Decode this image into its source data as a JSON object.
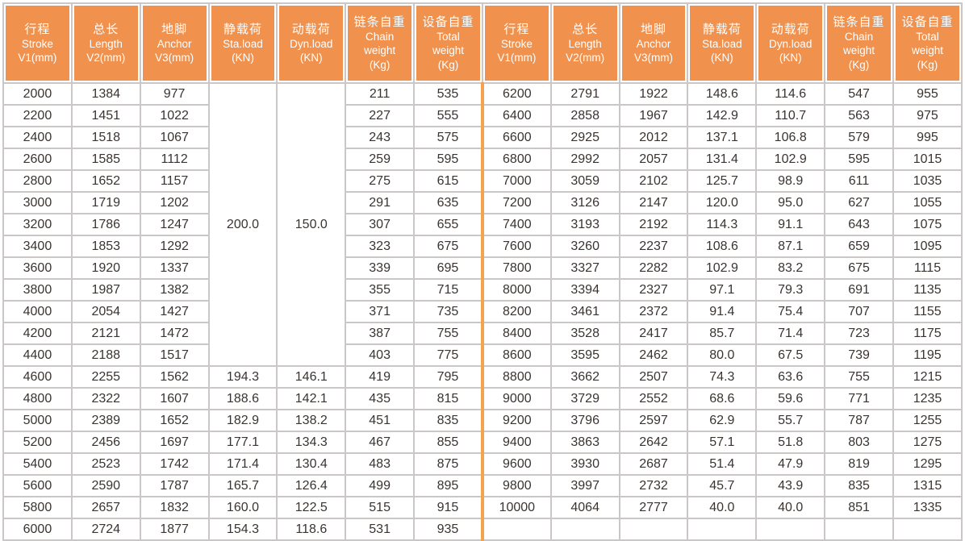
{
  "colors": {
    "header_bg": "#f0914e",
    "divider_orange": "#f5a24e",
    "grid_border": "#cbc7c6",
    "body_text": "#3a3431",
    "header_text": "#ffffff"
  },
  "table": {
    "header_columns": [
      {
        "lines": [
          "行程",
          "Stroke",
          "V1(mm)"
        ]
      },
      {
        "lines": [
          "总长",
          "Length",
          "V2(mm)"
        ]
      },
      {
        "lines": [
          "地脚",
          "Anchor",
          "V3(mm)"
        ]
      },
      {
        "lines": [
          "静载荷",
          "Sta.load",
          "(KN)"
        ]
      },
      {
        "lines": [
          "动载荷",
          "Dyn.load",
          "(KN)"
        ]
      },
      {
        "lines": [
          "链条自重",
          "Chain",
          "weight",
          "(Kg)"
        ]
      },
      {
        "lines": [
          "设备自重",
          "Total",
          "weight",
          "(Kg)"
        ]
      }
    ],
    "left": {
      "merged_sta_load": "200.0",
      "merged_dyn_load": "150.0",
      "merged_row_span": 13,
      "rows": [
        [
          "2000",
          "1384",
          "977",
          "",
          "",
          "211",
          "535"
        ],
        [
          "2200",
          "1451",
          "1022",
          "",
          "",
          "227",
          "555"
        ],
        [
          "2400",
          "1518",
          "1067",
          "",
          "",
          "243",
          "575"
        ],
        [
          "2600",
          "1585",
          "1112",
          "",
          "",
          "259",
          "595"
        ],
        [
          "2800",
          "1652",
          "1157",
          "",
          "",
          "275",
          "615"
        ],
        [
          "3000",
          "1719",
          "1202",
          "",
          "",
          "291",
          "635"
        ],
        [
          "3200",
          "1786",
          "1247",
          "",
          "",
          "307",
          "655"
        ],
        [
          "3400",
          "1853",
          "1292",
          "",
          "",
          "323",
          "675"
        ],
        [
          "3600",
          "1920",
          "1337",
          "",
          "",
          "339",
          "695"
        ],
        [
          "3800",
          "1987",
          "1382",
          "",
          "",
          "355",
          "715"
        ],
        [
          "4000",
          "2054",
          "1427",
          "",
          "",
          "371",
          "735"
        ],
        [
          "4200",
          "2121",
          "1472",
          "",
          "",
          "387",
          "755"
        ],
        [
          "4400",
          "2188",
          "1517",
          "",
          "",
          "403",
          "775"
        ],
        [
          "4600",
          "2255",
          "1562",
          "194.3",
          "146.1",
          "419",
          "795"
        ],
        [
          "4800",
          "2322",
          "1607",
          "188.6",
          "142.1",
          "435",
          "815"
        ],
        [
          "5000",
          "2389",
          "1652",
          "182.9",
          "138.2",
          "451",
          "835"
        ],
        [
          "5200",
          "2456",
          "1697",
          "177.1",
          "134.3",
          "467",
          "855"
        ],
        [
          "5400",
          "2523",
          "1742",
          "171.4",
          "130.4",
          "483",
          "875"
        ],
        [
          "5600",
          "2590",
          "1787",
          "165.7",
          "126.4",
          "499",
          "895"
        ],
        [
          "5800",
          "2657",
          "1832",
          "160.0",
          "122.5",
          "515",
          "915"
        ],
        [
          "6000",
          "2724",
          "1877",
          "154.3",
          "118.6",
          "531",
          "935"
        ]
      ]
    },
    "right": {
      "rows": [
        [
          "6200",
          "2791",
          "1922",
          "148.6",
          "114.6",
          "547",
          "955"
        ],
        [
          "6400",
          "2858",
          "1967",
          "142.9",
          "110.7",
          "563",
          "975"
        ],
        [
          "6600",
          "2925",
          "2012",
          "137.1",
          "106.8",
          "579",
          "995"
        ],
        [
          "6800",
          "2992",
          "2057",
          "131.4",
          "102.9",
          "595",
          "1015"
        ],
        [
          "7000",
          "3059",
          "2102",
          "125.7",
          "98.9",
          "611",
          "1035"
        ],
        [
          "7200",
          "3126",
          "2147",
          "120.0",
          "95.0",
          "627",
          "1055"
        ],
        [
          "7400",
          "3193",
          "2192",
          "114.3",
          "91.1",
          "643",
          "1075"
        ],
        [
          "7600",
          "3260",
          "2237",
          "108.6",
          "87.1",
          "659",
          "1095"
        ],
        [
          "7800",
          "3327",
          "2282",
          "102.9",
          "83.2",
          "675",
          "1115"
        ],
        [
          "8000",
          "3394",
          "2327",
          "97.1",
          "79.3",
          "691",
          "1135"
        ],
        [
          "8200",
          "3461",
          "2372",
          "91.4",
          "75.4",
          "707",
          "1155"
        ],
        [
          "8400",
          "3528",
          "2417",
          "85.7",
          "71.4",
          "723",
          "1175"
        ],
        [
          "8600",
          "3595",
          "2462",
          "80.0",
          "67.5",
          "739",
          "1195"
        ],
        [
          "8800",
          "3662",
          "2507",
          "74.3",
          "63.6",
          "755",
          "1215"
        ],
        [
          "9000",
          "3729",
          "2552",
          "68.6",
          "59.6",
          "771",
          "1235"
        ],
        [
          "9200",
          "3796",
          "2597",
          "62.9",
          "55.7",
          "787",
          "1255"
        ],
        [
          "9400",
          "3863",
          "2642",
          "57.1",
          "51.8",
          "803",
          "1275"
        ],
        [
          "9600",
          "3930",
          "2687",
          "51.4",
          "47.9",
          "819",
          "1295"
        ],
        [
          "9800",
          "3997",
          "2732",
          "45.7",
          "43.9",
          "835",
          "1315"
        ],
        [
          "10000",
          "4064",
          "2777",
          "40.0",
          "40.0",
          "851",
          "1335"
        ],
        [
          "",
          "",
          "",
          "",
          "",
          "",
          ""
        ]
      ]
    }
  }
}
